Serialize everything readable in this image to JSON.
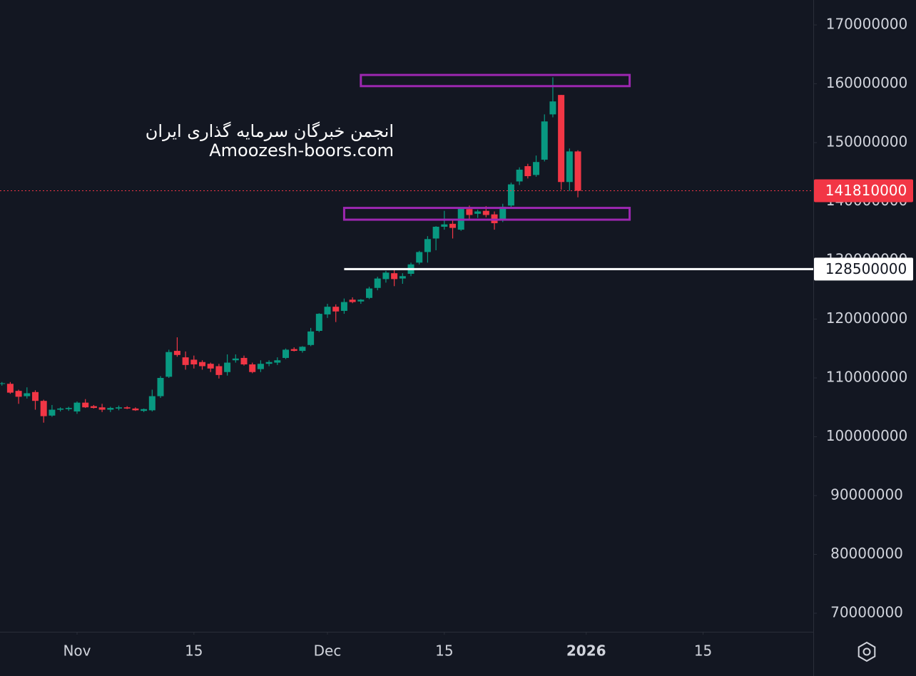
{
  "chart_data": {
    "type": "candlestick",
    "watermark": [
      "انجمن خبرگان سرمایه گذاری ایران",
      "Amoozesh-boors.com"
    ],
    "x": [
      -9,
      -8,
      -7,
      -6,
      -5,
      -4,
      -3,
      -2,
      -1,
      0,
      1,
      2,
      3,
      4,
      5,
      6,
      7,
      8,
      9,
      10,
      11,
      12,
      13,
      14,
      15,
      16,
      17,
      18,
      19,
      20,
      21,
      22,
      23,
      24,
      25,
      26,
      27,
      28,
      29,
      30,
      31,
      32,
      33,
      34,
      35,
      36,
      37,
      38,
      39,
      40,
      41,
      42,
      43,
      44,
      45,
      46,
      47,
      48,
      49,
      50,
      51,
      52,
      53,
      54,
      55,
      56,
      57,
      58,
      59,
      60
    ],
    "open": [
      109000000.0,
      109000000.0,
      107800000.0,
      106900000.0,
      107600000.0,
      106100000.0,
      103600000.0,
      104600000.0,
      104700000.0,
      104300000.0,
      105800000.0,
      105200000.0,
      105000000.0,
      104600000.0,
      104800000.0,
      105000000.0,
      104800000.0,
      104400000.0,
      104500000.0,
      106900000.0,
      110200000.0,
      114600000.0,
      113500000.0,
      113100000.0,
      112700000.0,
      112400000.0,
      112000000.0,
      111000000.0,
      113000000.0,
      113400000.0,
      112300000.0,
      111500000.0,
      112400000.0,
      112600000.0,
      113400000.0,
      114900000.0,
      114600000.0,
      115600000.0,
      118000000.0,
      120800000.0,
      122100000.0,
      121400000.0,
      123300000.0,
      123000000.0,
      123600000.0,
      125300000.0,
      126800000.0,
      127800000.0,
      126900000.0,
      127700000.0,
      129600000.0,
      131400000.0,
      133700000.0,
      135700000.0,
      136200000.0,
      135200000.0,
      138700000.0,
      137900000.0,
      138400000.0,
      137800000.0,
      136900000.0,
      139300000.0,
      143400000.0,
      146000000.0,
      144500000.0,
      147100000.0,
      154800000.0,
      158100000.0,
      143300000.0,
      148500000.0
    ],
    "high": [
      109300000.0,
      109300000.0,
      108000000.0,
      108400000.0,
      107900000.0,
      106300000.0,
      105400000.0,
      105000000.0,
      105100000.0,
      106000000.0,
      106400000.0,
      105400000.0,
      105600000.0,
      105100000.0,
      105300000.0,
      105200000.0,
      105000000.0,
      104800000.0,
      108000000.0,
      110300000.0,
      114800000.0,
      116900000.0,
      114500000.0,
      113800000.0,
      113000000.0,
      112600000.0,
      112400000.0,
      114000000.0,
      114000000.0,
      113800000.0,
      112600000.0,
      113000000.0,
      113000000.0,
      113500000.0,
      115000000.0,
      115200000.0,
      115400000.0,
      118500000.0,
      121000000.0,
      122600000.0,
      122500000.0,
      123500000.0,
      123700000.0,
      123400000.0,
      125500000.0,
      127200000.0,
      128200000.0,
      128500000.0,
      127800000.0,
      129600000.0,
      131600000.0,
      134100000.0,
      135800000.0,
      138400000.0,
      137000000.0,
      139000000.0,
      139300000.0,
      138600000.0,
      139200000.0,
      138300000.0,
      139600000.0,
      143200000.0,
      145800000.0,
      146400000.0,
      147800000.0,
      154800000.0,
      161100000.0,
      158100000.0,
      149000000.0,
      148700000.0
    ],
    "low": [
      108700000.0,
      107300000.0,
      105600000.0,
      106500000.0,
      104600000.0,
      102400000.0,
      103400000.0,
      104300000.0,
      104400000.0,
      103900000.0,
      104900000.0,
      104800000.0,
      104200000.0,
      104200000.0,
      104500000.0,
      104700000.0,
      104400000.0,
      104200000.0,
      104300000.0,
      106600000.0,
      110000000.0,
      113600000.0,
      111400000.0,
      111600000.0,
      111400000.0,
      111000000.0,
      109900000.0,
      110400000.0,
      112600000.0,
      112100000.0,
      110800000.0,
      111000000.0,
      112000000.0,
      112200000.0,
      113200000.0,
      114500000.0,
      114300000.0,
      115400000.0,
      117800000.0,
      120200000.0,
      119500000.0,
      120900000.0,
      122700000.0,
      122600000.0,
      123400000.0,
      124900000.0,
      126200000.0,
      125600000.0,
      126000000.0,
      127300000.0,
      129300000.0,
      129600000.0,
      131700000.0,
      135200000.0,
      133700000.0,
      135000000.0,
      136800000.0,
      137200000.0,
      137300000.0,
      135200000.0,
      136500000.0,
      139000000.0,
      142800000.0,
      143900000.0,
      144200000.0,
      146800000.0,
      154300000.0,
      142000000.0,
      141800000.0,
      140700000.0
    ],
    "close": [
      109100000.0,
      107500000.0,
      106800000.0,
      107400000.0,
      106100000.0,
      103500000.0,
      104600000.0,
      104800000.0,
      104900000.0,
      105800000.0,
      105000000.0,
      104900000.0,
      104600000.0,
      104900000.0,
      105000000.0,
      104800000.0,
      104500000.0,
      104700000.0,
      106900000.0,
      110000000.0,
      114400000.0,
      113900000.0,
      112200000.0,
      112300000.0,
      112000000.0,
      111600000.0,
      110500000.0,
      112600000.0,
      113300000.0,
      112300000.0,
      111000000.0,
      112400000.0,
      112700000.0,
      113000000.0,
      114800000.0,
      114600000.0,
      115300000.0,
      117900000.0,
      120900000.0,
      122100000.0,
      121300000.0,
      122900000.0,
      122900000.0,
      123300000.0,
      125200000.0,
      126900000.0,
      127900000.0,
      126800000.0,
      127300000.0,
      129300000.0,
      131400000.0,
      133600000.0,
      135700000.0,
      136100000.0,
      135500000.0,
      138800000.0,
      137700000.0,
      138300000.0,
      137700000.0,
      136300000.0,
      139100000.0,
      142900000.0,
      145400000.0,
      144300000.0,
      146700000.0,
      153600000.0,
      157000000.0,
      143300000.0,
      148500000.0,
      141810000.0
    ],
    "up_color": "#089981",
    "down_color": "#f23645",
    "xlim": [
      -9.23,
      88.2
    ],
    "ylim": [
      66850000.0,
      174240000.0
    ],
    "yticks": [
      70000000,
      80000000,
      90000000,
      100000000,
      110000000,
      120000000,
      130000000,
      140000000,
      150000000,
      160000000,
      170000000
    ],
    "xticks": [
      {
        "value": 0,
        "label": "Nov"
      },
      {
        "value": 14,
        "label": "15"
      },
      {
        "value": 30,
        "label": "Dec"
      },
      {
        "value": 44,
        "label": "15"
      },
      {
        "value": 61,
        "label": "2026"
      },
      {
        "value": 75,
        "label": "15"
      }
    ],
    "price_lines": [
      {
        "value": 141810000,
        "color": "#f23645",
        "style": "dotted"
      },
      {
        "value": 128500000,
        "color": "#ffffff",
        "style": "solid",
        "start": 32
      }
    ],
    "zones": [
      {
        "x": [
          34,
          66.2
        ],
        "y": [
          159600000.0,
          161500000.0
        ],
        "color": "#9c27b0"
      },
      {
        "x": [
          32,
          66.2
        ],
        "y": [
          136900000.0,
          138900000.0
        ],
        "color": "#9c27b0"
      }
    ]
  }
}
